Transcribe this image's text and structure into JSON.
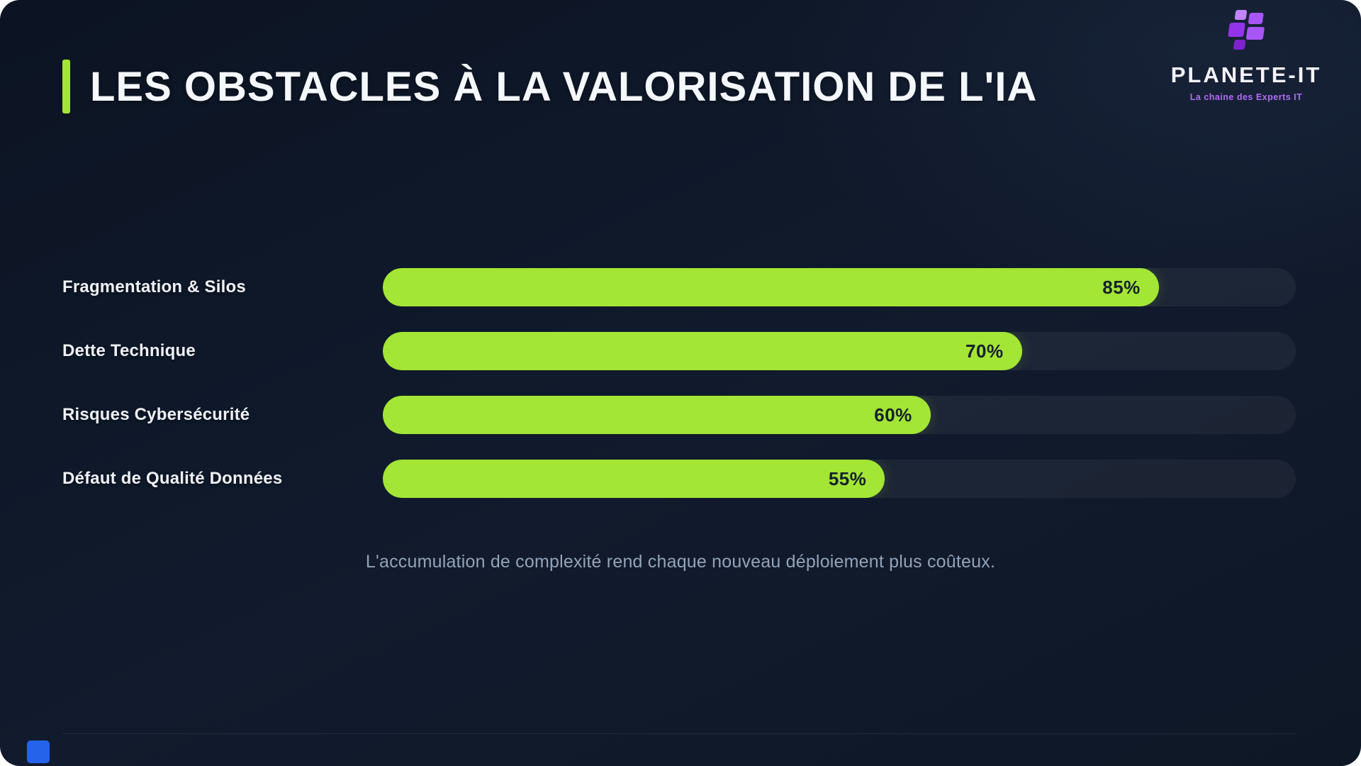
{
  "header": {
    "title": "LES OBSTACLES À LA VALORISATION DE L'IA",
    "accent_color": "#a3e635"
  },
  "logo": {
    "name": "PLANETE-IT",
    "tagline": "La chaine des Experts IT",
    "brand_color": "#a855f7"
  },
  "chart_data": {
    "type": "bar",
    "orientation": "horizontal",
    "title": "LES OBSTACLES À LA VALORISATION DE L'IA",
    "categories": [
      "Fragmentation & Silos",
      "Dette Technique",
      "Risques Cybersécurité",
      "Défaut de Qualité Données"
    ],
    "values": [
      85,
      70,
      60,
      55
    ],
    "value_labels": [
      "85%",
      "70%",
      "60%",
      "55%"
    ],
    "xlim": [
      0,
      100
    ],
    "bar_color": "#a3e635",
    "track_color": "rgba(255,255,255,0.05)",
    "value_label_color": "#16202e",
    "grid": false,
    "legend": false
  },
  "caption": "L'accumulation de complexité rend chaque nouveau déploiement plus coûteux.",
  "colors": {
    "background": "#0e1726",
    "title_text": "#f4f7fb",
    "label_text": "#eef2f7",
    "caption_text": "#94a3b8",
    "accent_green": "#a3e635",
    "brand_purple": "#a855f7",
    "corner_blue": "#2563eb"
  }
}
